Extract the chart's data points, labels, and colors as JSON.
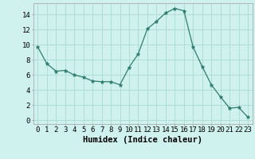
{
  "x": [
    0,
    1,
    2,
    3,
    4,
    5,
    6,
    7,
    8,
    9,
    10,
    11,
    12,
    13,
    14,
    15,
    16,
    17,
    18,
    19,
    20,
    21,
    22,
    23
  ],
  "y": [
    9.7,
    7.5,
    6.5,
    6.6,
    6.0,
    5.7,
    5.2,
    5.1,
    5.1,
    4.7,
    7.0,
    8.8,
    12.1,
    13.1,
    14.2,
    14.8,
    14.5,
    9.7,
    7.1,
    4.7,
    3.1,
    1.6,
    1.7,
    0.4
  ],
  "line_color": "#2e7d6e",
  "marker": "*",
  "marker_size": 3.5,
  "bg_color": "#cff2ee",
  "grid_color": "#b0ddd8",
  "xlabel": "Humidex (Indice chaleur)",
  "ylabel_ticks": [
    0,
    2,
    4,
    6,
    8,
    10,
    12,
    14
  ],
  "ylim": [
    -0.5,
    15.5
  ],
  "xlim": [
    -0.5,
    23.5
  ],
  "tick_fontsize": 6.5,
  "xlabel_fontsize": 7.5
}
